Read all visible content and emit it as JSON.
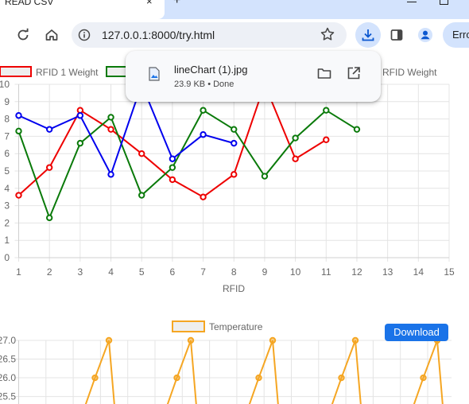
{
  "browser": {
    "tab_title": "READ CSV",
    "tab_close": "×",
    "new_tab": "+",
    "url": "127.0.0.1:8000/try.html",
    "error_label": "Erro",
    "icons": [
      "reload-icon",
      "home-icon",
      "info-icon",
      "star-icon",
      "download-icon",
      "sidepanel-icon",
      "profile-icon"
    ]
  },
  "download_bubble": {
    "file_name": "lineChart (1).jpg",
    "status": "23.9 KB • Done"
  },
  "page": {
    "download_button": "Download"
  },
  "chart_data": [
    {
      "type": "line",
      "x": [
        1,
        2,
        3,
        4,
        5,
        6,
        7,
        8,
        9,
        10,
        11,
        12
      ],
      "x_ticks": [
        "1",
        "2",
        "3",
        "4",
        "5",
        "6",
        "7",
        "8",
        "9",
        "10",
        "11",
        "12",
        "13",
        "14",
        "15"
      ],
      "y_ticks": [
        "0",
        "1",
        "2",
        "3",
        "4",
        "5",
        "6",
        "7",
        "8",
        "9",
        "10"
      ],
      "xlabel": "RFID",
      "xlim": [
        1,
        15
      ],
      "ylim": [
        0,
        10
      ],
      "grid": true,
      "legend_position": "top",
      "series": [
        {
          "name": "RFID 1 Weight",
          "color": "#ee0000",
          "values": [
            3.6,
            5.2,
            8.5,
            7.4,
            6.0,
            4.5,
            3.5,
            4.8,
            10.0,
            5.7,
            6.8,
            null
          ]
        },
        {
          "name": "",
          "color": "#0a7a0a",
          "values": [
            7.3,
            2.3,
            6.6,
            8.1,
            3.6,
            5.2,
            8.5,
            7.4,
            4.7,
            6.9,
            8.5,
            7.4
          ]
        },
        {
          "name": "RFID Weight",
          "color": "#0000ee",
          "values": [
            8.2,
            7.4,
            8.2,
            4.8,
            10.0,
            5.7,
            7.1,
            6.6,
            null,
            null,
            null,
            null
          ]
        }
      ]
    },
    {
      "type": "line",
      "series": [
        {
          "name": "Temperature",
          "color": "#f5a623",
          "values": [
            26.0,
            27.0,
            25.0,
            26.0,
            27.0,
            25.0,
            26.0,
            27.0,
            25.0,
            26.0,
            27.0,
            25.0,
            26.0,
            27.0,
            25.0
          ]
        }
      ],
      "y_ticks": [
        "27.0",
        "26.5",
        "26.0",
        "25.5"
      ],
      "ylim": [
        25.3,
        27.0
      ],
      "grid": true,
      "legend_position": "top"
    }
  ]
}
